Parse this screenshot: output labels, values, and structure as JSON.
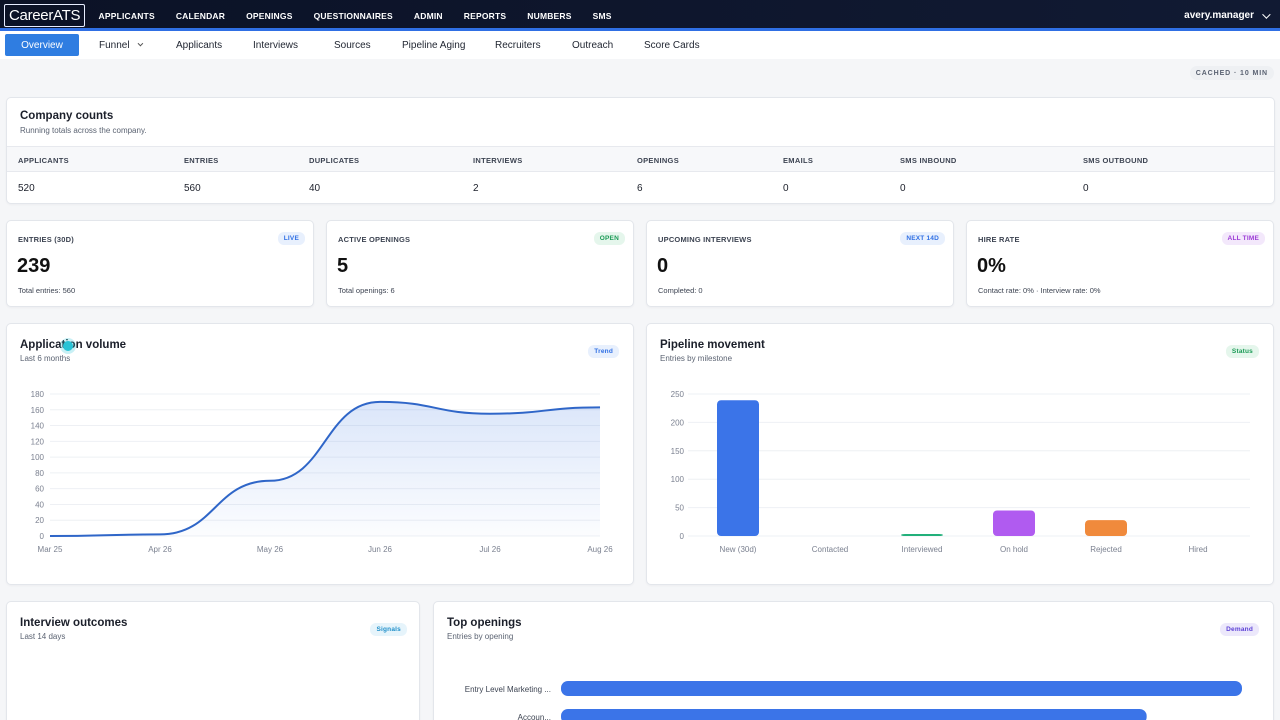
{
  "app": {
    "logo": "CareerATS",
    "nav": [
      "APPLICANTS",
      "CALENDAR",
      "OPENINGS",
      "QUESTIONNAIRES",
      "ADMIN",
      "REPORTS",
      "NUMBERS",
      "SMS"
    ],
    "user": "avery.manager"
  },
  "tabs": [
    "Overview",
    "Funnel",
    "Applicants",
    "Interviews",
    "Sources",
    "Pipeline Aging",
    "Recruiters",
    "Outreach",
    "Score Cards"
  ],
  "cached": "CACHED · 10 MIN",
  "company_counts": {
    "title": "Company counts",
    "subtitle": "Running totals across the company.",
    "headers": [
      "APPLICANTS",
      "ENTRIES",
      "DUPLICATES",
      "INTERVIEWS",
      "OPENINGS",
      "EMAILS",
      "SMS INBOUND",
      "SMS OUTBOUND"
    ],
    "values": [
      "520",
      "560",
      "40",
      "2",
      "6",
      "0",
      "0",
      "0"
    ]
  },
  "kpis": [
    {
      "label": "ENTRIES (30D)",
      "badge": "LIVE",
      "value": "239",
      "foot": "Total entries: 560",
      "badge_color": "#2f6fe4",
      "badge_bg": "#e8f0fd"
    },
    {
      "label": "ACTIVE OPENINGS",
      "badge": "OPEN",
      "value": "5",
      "foot": "Total openings: 6",
      "badge_color": "#1a9a55",
      "badge_bg": "#e5f6ec"
    },
    {
      "label": "UPCOMING INTERVIEWS",
      "badge": "NEXT 14D",
      "value": "0",
      "foot": "Completed: 0",
      "badge_color": "#2f6fe4",
      "badge_bg": "#e8f0fd"
    },
    {
      "label": "HIRE RATE",
      "badge": "ALL TIME",
      "value": "0%",
      "foot": "Contact rate: 0% · Interview rate: 0%",
      "badge_color": "#9b3ad6",
      "badge_bg": "#f3e8fb"
    }
  ],
  "volume": {
    "title": "Application volume",
    "subtitle": "Last 6 months",
    "badge": "Trend",
    "badge_color": "#2f6fe4",
    "badge_bg": "#e8f0fd"
  },
  "pipeline": {
    "title": "Pipeline movement",
    "subtitle": "Entries by milestone",
    "badge": "Status",
    "badge_color": "#1a9a55",
    "badge_bg": "#e5f6ec"
  },
  "outcomes": {
    "title": "Interview outcomes",
    "subtitle": "Last 14 days",
    "badge": "Signals",
    "badge_color": "#1f8fc9",
    "badge_bg": "#e6f4fb"
  },
  "top_openings": {
    "title": "Top openings",
    "subtitle": "Entries by opening",
    "badge": "Demand",
    "badge_color": "#5b3fd6",
    "badge_bg": "#ece8fb"
  },
  "chart_data": [
    {
      "type": "line",
      "x": [
        "Mar 25",
        "Apr 26",
        "May 26",
        "Jun 26",
        "Jul 26",
        "Aug 26"
      ],
      "series": [
        {
          "values": [
            0,
            2,
            70,
            170,
            155,
            163
          ]
        }
      ],
      "ylim": [
        0,
        180
      ],
      "yticks": [
        0,
        20,
        40,
        60,
        80,
        100,
        120,
        140,
        160,
        180
      ],
      "color": "#2f66c8"
    },
    {
      "type": "bar",
      "categories": [
        "New (30d)",
        "Contacted",
        "Interviewed",
        "On hold",
        "Rejected",
        "Hired"
      ],
      "values": [
        239,
        0,
        2,
        45,
        28,
        0
      ],
      "colors": [
        "#3b74e8",
        "#3b74e8",
        "#22b07a",
        "#b05bf0",
        "#f08a3c",
        "#3b74e8"
      ],
      "ylim": [
        0,
        250
      ],
      "yticks": [
        0,
        50,
        100,
        150,
        200,
        250
      ]
    },
    {
      "type": "bar",
      "orientation": "horizontal",
      "categories": [
        "Entry Level Marketing ...",
        "Accoun..."
      ],
      "values": [
        100,
        86
      ],
      "color": "#3b74e8"
    }
  ]
}
